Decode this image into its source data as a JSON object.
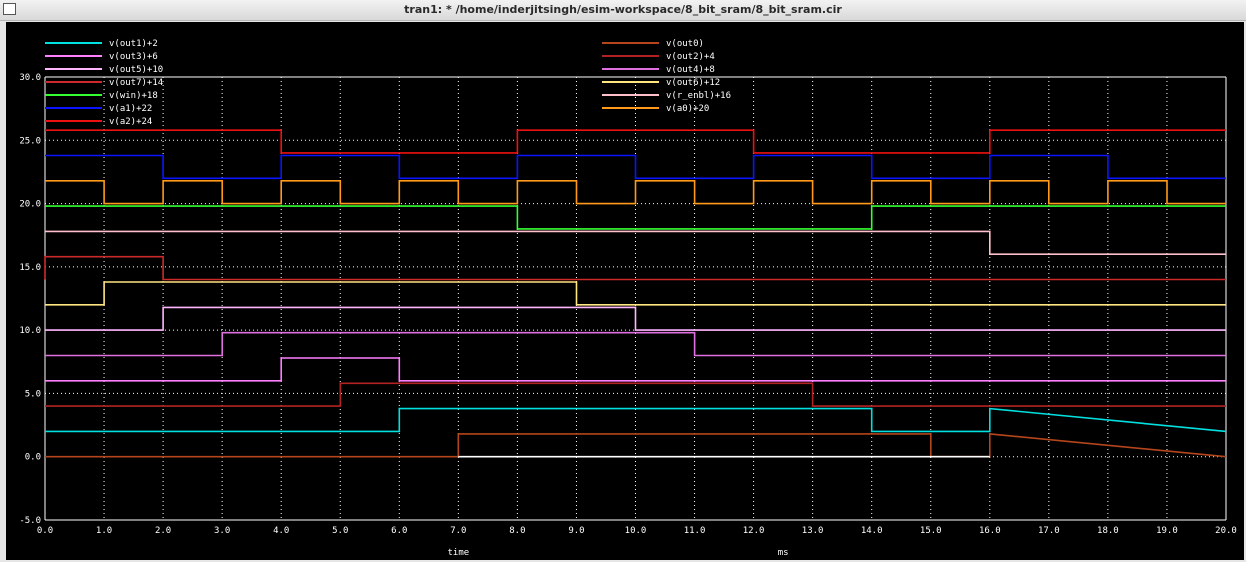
{
  "window": {
    "title": "tran1: * /home/inderjitsingh/esim-workspace/8_bit_sram/8_bit_sram.cir"
  },
  "colors": {
    "background": "#000000",
    "grid": "#ffffff",
    "text": "#ffffff"
  },
  "chart_data": {
    "type": "line",
    "step": true,
    "xlabel": "time",
    "xunit": "ms",
    "xlim": [
      0,
      20
    ],
    "ylim": [
      -5,
      30
    ],
    "x_ticks": [
      "0.0",
      "1.0",
      "2.0",
      "3.0",
      "4.0",
      "5.0",
      "6.0",
      "7.0",
      "8.0",
      "9.0",
      "10.0",
      "11.0",
      "12.0",
      "13.0",
      "14.0",
      "15.0",
      "16.0",
      "17.0",
      "18.0",
      "19.0",
      "20.0"
    ],
    "y_ticks": [
      "-5.0",
      "0.0",
      "5.0",
      "10.0",
      "15.0",
      "20.0",
      "25.0",
      "30.0"
    ],
    "grid": true,
    "legend_placement": "top",
    "series": [
      {
        "name": "v(out1)+2",
        "color": "#00e0e0",
        "x": [
          0,
          6,
          6,
          14,
          14,
          16,
          16,
          20
        ],
        "y": [
          2,
          2,
          3.8,
          3.8,
          2,
          2,
          3.8,
          2
        ]
      },
      {
        "name": "v(out0)",
        "color": "#b5451b",
        "x": [
          0,
          7,
          7,
          15,
          15,
          16,
          16,
          20
        ],
        "y": [
          0,
          0,
          1.8,
          1.8,
          0,
          0,
          1.8,
          0
        ]
      },
      {
        "name": "v(out3)+6",
        "color": "#ff7fff",
        "x": [
          0,
          4,
          4,
          6,
          6,
          20
        ],
        "y": [
          6,
          6,
          7.8,
          7.8,
          6,
          6
        ]
      },
      {
        "name": "v(out2)+4",
        "color": "#b22222",
        "x": [
          0,
          5,
          5,
          13,
          13,
          20
        ],
        "y": [
          4,
          4,
          5.8,
          5.8,
          4,
          4
        ]
      },
      {
        "name": "v(out5)+10",
        "color": "#ffb6ff",
        "x": [
          0,
          2,
          2,
          10,
          10,
          20
        ],
        "y": [
          10,
          10,
          11.8,
          11.8,
          10,
          10
        ]
      },
      {
        "name": "v(out4)+8",
        "color": "#e070e0",
        "x": [
          0,
          3,
          3,
          11,
          11,
          20
        ],
        "y": [
          8,
          8,
          9.8,
          9.8,
          8,
          8
        ]
      },
      {
        "name": "v(out7)+14",
        "color": "#cc2a2a",
        "x": [
          0,
          0,
          2,
          2,
          20
        ],
        "y": [
          14,
          15.8,
          15.8,
          14,
          14
        ]
      },
      {
        "name": "v(out6)+12",
        "color": "#ffe680",
        "x": [
          0,
          1,
          1,
          9,
          9,
          20
        ],
        "y": [
          12,
          12,
          13.8,
          13.8,
          12,
          12
        ]
      },
      {
        "name": "v(win)+18",
        "color": "#33ff33",
        "x": [
          0,
          8,
          8,
          14,
          14,
          20
        ],
        "y": [
          19.8,
          19.8,
          18,
          18,
          19.8,
          19.8
        ]
      },
      {
        "name": "v(r_enbl)+16",
        "color": "#ffc0cb",
        "x": [
          0,
          16,
          16,
          20
        ],
        "y": [
          17.8,
          17.8,
          16,
          16
        ]
      },
      {
        "name": "v(a1)+22",
        "color": "#0a14ff",
        "x": [
          0,
          2,
          2,
          4,
          4,
          6,
          6,
          8,
          8,
          10,
          10,
          12,
          12,
          14,
          14,
          16,
          16,
          18,
          18,
          20
        ],
        "y": [
          23.8,
          23.8,
          22,
          22,
          23.8,
          23.8,
          22,
          22,
          23.8,
          23.8,
          22,
          22,
          23.8,
          23.8,
          22,
          22,
          23.8,
          23.8,
          22,
          22
        ]
      },
      {
        "name": "v(a0)+20",
        "color": "#ff9a1a",
        "x": [
          0,
          1,
          1,
          2,
          2,
          3,
          3,
          4,
          4,
          5,
          5,
          6,
          6,
          7,
          7,
          8,
          8,
          9,
          9,
          10,
          10,
          11,
          11,
          12,
          12,
          13,
          13,
          14,
          14,
          15,
          15,
          16,
          16,
          17,
          17,
          18,
          18,
          19,
          19,
          20
        ],
        "y": [
          21.8,
          21.8,
          20,
          20,
          21.8,
          21.8,
          20,
          20,
          21.8,
          21.8,
          20,
          20,
          21.8,
          21.8,
          20,
          20,
          21.8,
          21.8,
          20,
          20,
          21.8,
          21.8,
          20,
          20,
          21.8,
          21.8,
          20,
          20,
          21.8,
          21.8,
          20,
          20,
          21.8,
          21.8,
          20,
          20,
          21.8,
          21.8,
          20,
          20
        ]
      },
      {
        "name": "v(a2)+24",
        "color": "#ee1111",
        "x": [
          0,
          4,
          4,
          8,
          8,
          12,
          12,
          16,
          16,
          20
        ],
        "y": [
          25.8,
          25.8,
          24,
          24,
          25.8,
          25.8,
          24,
          24,
          25.8,
          25.8
        ]
      }
    ],
    "extra_trace": {
      "color": "#ffffff",
      "x": [
        7,
        16
      ],
      "y": [
        0,
        0
      ]
    }
  }
}
